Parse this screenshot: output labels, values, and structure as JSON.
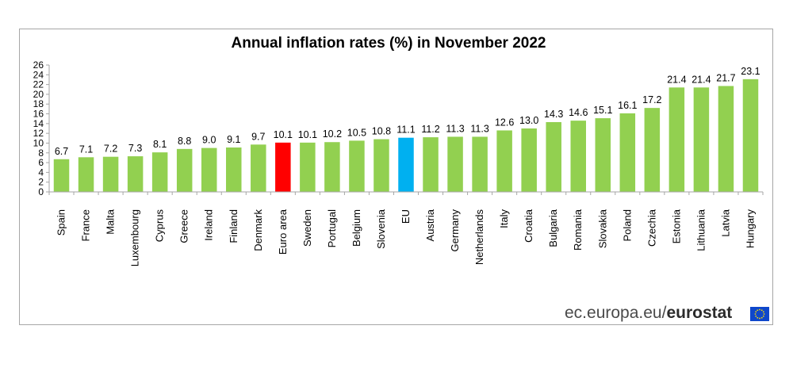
{
  "chart_data": {
    "type": "bar",
    "title": "Annual inflation rates (%) in November 2022",
    "xlabel": "",
    "ylabel": "",
    "ylim": [
      0,
      26
    ],
    "yticks": [
      0,
      2,
      4,
      6,
      8,
      10,
      12,
      14,
      16,
      18,
      20,
      22,
      24,
      26
    ],
    "categories": [
      "Spain",
      "France",
      "Malta",
      "Luxembourg",
      "Cyprus",
      "Greece",
      "Ireland",
      "Finland",
      "Denmark",
      "Euro area",
      "Sweden",
      "Portugal",
      "Belgium",
      "Slovenia",
      "EU",
      "Austria",
      "Germany",
      "Netherlands",
      "Italy",
      "Croatia",
      "Bulgaria",
      "Romania",
      "Slovakia",
      "Poland",
      "Czechia",
      "Estonia",
      "Lithuania",
      "Latvia",
      "Hungary"
    ],
    "values": [
      6.7,
      7.1,
      7.2,
      7.3,
      8.1,
      8.8,
      9.0,
      9.1,
      9.7,
      10.1,
      10.1,
      10.2,
      10.5,
      10.8,
      11.1,
      11.2,
      11.3,
      11.3,
      12.6,
      13.0,
      14.3,
      14.6,
      15.1,
      16.1,
      17.2,
      21.4,
      21.4,
      21.7,
      23.1
    ],
    "value_labels": [
      "6.7",
      "7.1",
      "7.2",
      "7.3",
      "8.1",
      "8.8",
      "9.0",
      "9.1",
      "9.7",
      "10.1",
      "10.1",
      "10.2",
      "10.5",
      "10.8",
      "11.1",
      "11.2",
      "11.3",
      "11.3",
      "12.6",
      "13.0",
      "14.3",
      "14.6",
      "15.1",
      "16.1",
      "17.2",
      "21.4",
      "21.4",
      "21.7",
      "23.1"
    ],
    "colors": {
      "default": "#92d050",
      "Euro area": "#ff0000",
      "EU": "#00b0f0"
    },
    "grid": false,
    "legend": "none"
  },
  "source": {
    "domain": "ec.europa.eu/",
    "brand": "eurostat"
  },
  "colors": {
    "axis": "#a6a6a6",
    "flag_blue": "#0e47cb",
    "flag_star": "#ffdd00"
  }
}
